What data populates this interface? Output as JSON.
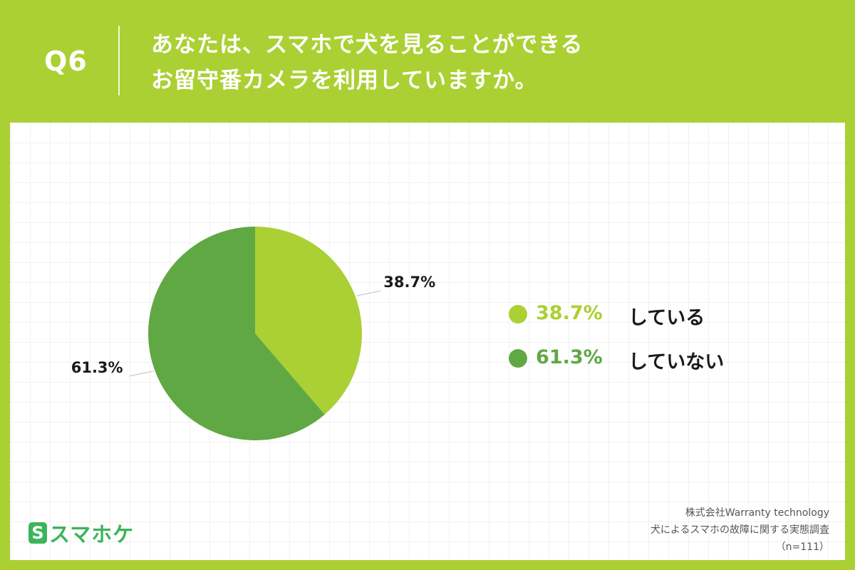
{
  "header": {
    "question_number": "Q6",
    "title_line1": "あなたは、スマホで犬を見ることができる",
    "title_line2": "お留守番カメラを利用していますか。"
  },
  "colors": {
    "background": "#abd033",
    "slice_yes": "#abd033",
    "slice_no": "#60a844"
  },
  "chart_data": {
    "type": "pie",
    "title": "あなたは、スマホで犬を見ることができるお留守番カメラを利用していますか。",
    "slices": [
      {
        "label": "している",
        "value": 38.7,
        "value_label": "38.7%",
        "color": "#abd033"
      },
      {
        "label": "していない",
        "value": 61.3,
        "value_label": "61.3%",
        "color": "#60a844"
      }
    ],
    "legend_position": "right",
    "start_angle": "12 o'clock, clockwise"
  },
  "logo": {
    "mark": "S",
    "text": "スマホケ"
  },
  "source": {
    "line1": "株式会社Warranty technology",
    "line2": "犬によるスマホの故障に関する実態調査",
    "line3": "（n=111）"
  }
}
